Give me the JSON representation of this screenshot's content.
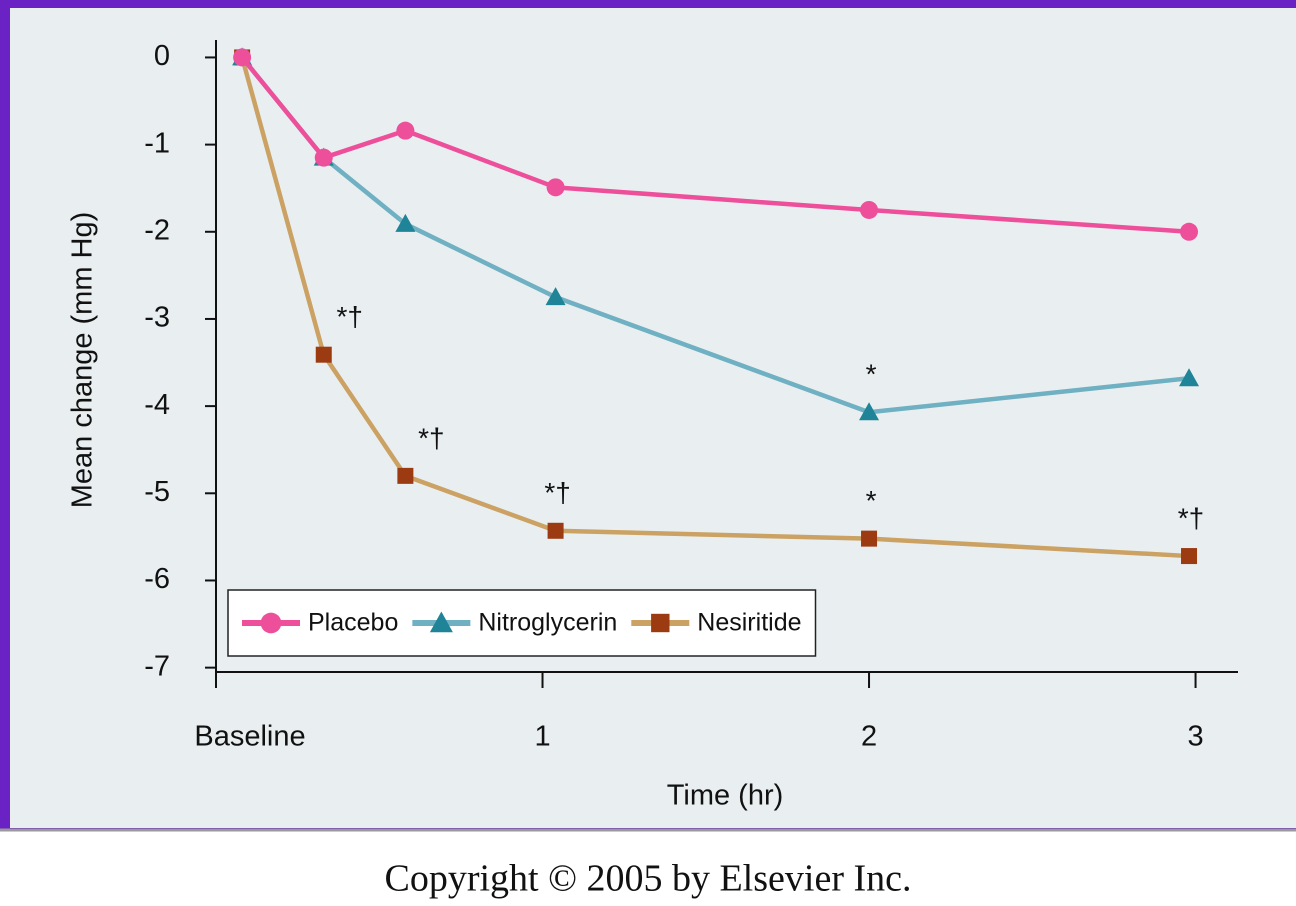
{
  "chart_data": {
    "type": "line",
    "x_label": "Time (hr)",
    "y_label": "Mean change (mm Hg)",
    "x": [
      0.08,
      0.33,
      0.58,
      1.04,
      2.0,
      2.98
    ],
    "xlim": [
      0,
      3.13
    ],
    "xticks": [
      {
        "value": 0,
        "label": "Baseline"
      },
      1,
      2,
      3
    ],
    "ylim": [
      -7.05,
      0.2
    ],
    "yticks": [
      0,
      -1,
      -2,
      -3,
      -4,
      -5,
      -6,
      -7
    ],
    "legend": "bottom-left",
    "series": [
      {
        "name": "Placebo",
        "color": "#ee4f9b",
        "marker_color": "#ee4f9b",
        "marker": "circle",
        "values": [
          0,
          -1.15,
          -0.84,
          -1.49,
          -1.75,
          -2.0
        ]
      },
      {
        "name": "Nitroglycerin",
        "color": "#6fb0c2",
        "marker_color": "#1f8497",
        "marker": "triangle",
        "values": [
          0,
          -1.15,
          -1.91,
          -2.75,
          -4.07,
          -3.68
        ],
        "annotations": [
          null,
          null,
          null,
          null,
          "*",
          null
        ]
      },
      {
        "name": "Nesiritide",
        "color": "#cba263",
        "marker_color": "#9c3a12",
        "marker": "square",
        "values": [
          0,
          -3.41,
          -4.8,
          -5.43,
          -5.52,
          -5.72
        ],
        "annotations": [
          null,
          "*†",
          "*†",
          "*†",
          "*",
          "*†"
        ]
      }
    ]
  },
  "footer": {
    "copyright": "Copyright © 2005 by Elsevier Inc."
  }
}
